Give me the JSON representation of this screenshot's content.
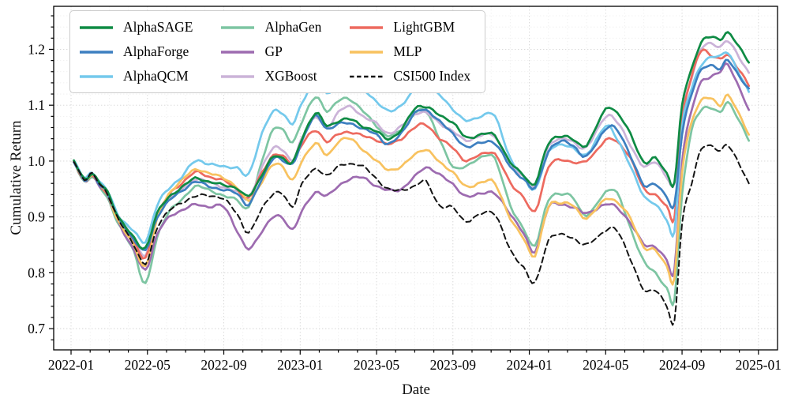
{
  "figure": {
    "xlabel": "Date",
    "ylabel": "Cumulative Return"
  },
  "chart_data": {
    "type": "line",
    "title": "",
    "xlabel": "Date",
    "ylabel": "Cumulative Return",
    "grid": true,
    "legend_position": "upper-left",
    "x_unit": "months since 2022-01",
    "xlim": [
      -0.91,
      37.0
    ],
    "ylim": [
      0.662,
      1.277
    ],
    "x_tick_positions": [
      0,
      4,
      8,
      12,
      16,
      20,
      24,
      28,
      32,
      36
    ],
    "x_tick_labels": [
      "2022-01",
      "2022-05",
      "2022-09",
      "2023-01",
      "2023-05",
      "2023-09",
      "2024-01",
      "2024-05",
      "2024-09",
      "2025-01"
    ],
    "y_ticks": [
      0.7,
      0.8,
      0.9,
      1.0,
      1.1,
      1.2
    ],
    "y_tick_labels": [
      "0.7",
      "0.8",
      "0.9",
      "1.0",
      "1.1",
      "1.2"
    ],
    "x": [
      0.15,
      0.7,
      1.1,
      1.5,
      1.9,
      2.4,
      2.8,
      3.3,
      3.9,
      4.5,
      5.1,
      5.8,
      6.5,
      7.2,
      8.0,
      8.7,
      9.3,
      10.0,
      10.6,
      11.1,
      11.6,
      12.1,
      12.8,
      13.4,
      14.0,
      14.6,
      15.3,
      16.0,
      16.6,
      17.3,
      18.0,
      18.6,
      19.3,
      20.0,
      20.7,
      21.5,
      22.2,
      23.0,
      23.7,
      24.3,
      25.0,
      25.7,
      26.3,
      27.0,
      28.0,
      28.6,
      29.3,
      30.0,
      30.6,
      31.2,
      31.6,
      32.0,
      32.5,
      33.0,
      33.5,
      34.0,
      34.4,
      35.0,
      35.5
    ],
    "series": [
      {
        "name": "AlphaSAGE",
        "color": "#0e8b44",
        "style": "solid",
        "values": [
          1.0,
          0.968,
          0.978,
          0.96,
          0.945,
          0.905,
          0.885,
          0.862,
          0.845,
          0.905,
          0.935,
          0.952,
          0.97,
          0.962,
          0.958,
          0.95,
          0.938,
          0.975,
          1.008,
          1.005,
          0.997,
          1.04,
          1.086,
          1.063,
          1.072,
          1.075,
          1.062,
          1.053,
          1.04,
          1.056,
          1.094,
          1.097,
          1.082,
          1.069,
          1.042,
          1.048,
          1.045,
          0.998,
          0.975,
          0.96,
          1.031,
          1.045,
          1.038,
          1.029,
          1.093,
          1.086,
          1.048,
          0.998,
          1.005,
          0.978,
          0.963,
          1.1,
          1.165,
          1.212,
          1.222,
          1.218,
          1.23,
          1.203,
          1.178
        ]
      },
      {
        "name": "AlphaForge",
        "color": "#3d7fc0",
        "style": "solid",
        "values": [
          1.0,
          0.966,
          0.976,
          0.958,
          0.943,
          0.902,
          0.882,
          0.86,
          0.84,
          0.898,
          0.928,
          0.946,
          0.963,
          0.955,
          0.948,
          0.942,
          0.922,
          0.968,
          1.006,
          1.0,
          0.995,
          1.036,
          1.081,
          1.058,
          1.066,
          1.068,
          1.057,
          1.048,
          1.03,
          1.05,
          1.086,
          1.09,
          1.072,
          1.048,
          1.026,
          1.033,
          1.032,
          0.99,
          0.968,
          0.952,
          1.017,
          1.035,
          1.028,
          1.008,
          1.058,
          1.055,
          1.01,
          0.956,
          0.96,
          0.935,
          0.921,
          1.05,
          1.12,
          1.162,
          1.172,
          1.165,
          1.18,
          1.152,
          1.128
        ]
      },
      {
        "name": "AlphaQCM",
        "color": "#74c9ec",
        "style": "solid",
        "values": [
          1.0,
          0.97,
          0.98,
          0.962,
          0.947,
          0.908,
          0.89,
          0.874,
          0.856,
          0.92,
          0.95,
          0.972,
          1.0,
          0.995,
          0.99,
          0.988,
          0.976,
          1.05,
          1.088,
          1.085,
          1.067,
          1.103,
          1.144,
          1.12,
          1.142,
          1.146,
          1.13,
          1.106,
          1.09,
          1.1,
          1.126,
          1.13,
          1.118,
          1.093,
          1.072,
          1.081,
          1.08,
          1.005,
          0.972,
          0.95,
          1.015,
          1.03,
          1.022,
          1.012,
          1.062,
          1.04,
          0.99,
          0.938,
          0.922,
          0.895,
          0.874,
          1.06,
          1.13,
          1.172,
          1.185,
          1.188,
          1.195,
          1.155,
          1.124
        ]
      },
      {
        "name": "AlphaGen",
        "color": "#7dc5a2",
        "style": "solid",
        "values": [
          1.0,
          0.963,
          0.972,
          0.953,
          0.935,
          0.893,
          0.868,
          0.838,
          0.78,
          0.862,
          0.908,
          0.93,
          0.955,
          0.948,
          0.938,
          0.93,
          0.918,
          1.0,
          1.058,
          1.055,
          1.033,
          1.072,
          1.114,
          1.09,
          1.108,
          1.11,
          1.09,
          1.062,
          1.046,
          1.056,
          1.086,
          1.088,
          1.04,
          0.989,
          0.992,
          1.006,
          1.005,
          0.92,
          0.88,
          0.848,
          0.931,
          0.94,
          0.935,
          0.902,
          0.945,
          0.942,
          0.88,
          0.82,
          0.8,
          0.772,
          0.752,
          0.94,
          1.055,
          1.09,
          1.096,
          1.088,
          1.104,
          1.072,
          1.038
        ]
      },
      {
        "name": "GP",
        "color": "#9d6bb0",
        "style": "solid",
        "values": [
          1.0,
          0.964,
          0.974,
          0.956,
          0.938,
          0.896,
          0.87,
          0.84,
          0.805,
          0.868,
          0.898,
          0.912,
          0.922,
          0.918,
          0.918,
          0.875,
          0.842,
          0.875,
          0.9,
          0.897,
          0.878,
          0.91,
          0.944,
          0.938,
          0.955,
          0.968,
          0.97,
          0.955,
          0.948,
          0.95,
          0.972,
          0.989,
          0.975,
          0.959,
          0.936,
          0.943,
          0.941,
          0.906,
          0.87,
          0.838,
          0.917,
          0.922,
          0.917,
          0.907,
          0.922,
          0.917,
          0.888,
          0.852,
          0.846,
          0.822,
          0.806,
          1.0,
          1.09,
          1.142,
          1.15,
          1.16,
          1.173,
          1.13,
          1.09
        ]
      },
      {
        "name": "XGBoost",
        "color": "#cbb3d8",
        "style": "solid",
        "values": [
          1.0,
          0.967,
          0.977,
          0.959,
          0.944,
          0.904,
          0.884,
          0.858,
          0.832,
          0.9,
          0.932,
          0.95,
          0.968,
          0.962,
          0.953,
          0.945,
          0.934,
          0.988,
          1.024,
          1.02,
          1.0,
          1.042,
          1.078,
          1.06,
          1.088,
          1.097,
          1.08,
          1.067,
          1.05,
          1.062,
          1.084,
          1.086,
          1.068,
          1.053,
          1.037,
          1.046,
          1.044,
          0.995,
          0.972,
          0.955,
          1.026,
          1.04,
          1.034,
          1.025,
          1.08,
          1.07,
          1.028,
          0.99,
          0.998,
          0.972,
          0.958,
          1.085,
          1.15,
          1.2,
          1.21,
          1.205,
          1.215,
          1.185,
          1.158
        ]
      },
      {
        "name": "LightGBM",
        "color": "#ed6a5f",
        "style": "solid",
        "values": [
          1.0,
          0.965,
          0.975,
          0.957,
          0.941,
          0.9,
          0.88,
          0.855,
          0.826,
          0.9,
          0.938,
          0.96,
          0.98,
          0.972,
          0.965,
          0.95,
          0.933,
          0.98,
          1.01,
          1.008,
          0.998,
          1.03,
          1.055,
          1.035,
          1.048,
          1.052,
          1.045,
          1.038,
          1.03,
          1.04,
          1.06,
          1.065,
          1.04,
          1.024,
          1.0,
          1.013,
          1.012,
          0.962,
          0.935,
          0.91,
          0.989,
          1.002,
          0.998,
          1.0,
          1.037,
          1.034,
          1.005,
          0.95,
          0.94,
          0.918,
          0.9,
          1.075,
          1.15,
          1.198,
          1.19,
          1.182,
          1.19,
          1.163,
          1.135
        ]
      },
      {
        "name": "MLP",
        "color": "#f8c25f",
        "style": "solid",
        "values": [
          1.0,
          0.966,
          0.976,
          0.958,
          0.94,
          0.898,
          0.875,
          0.848,
          0.812,
          0.895,
          0.94,
          0.965,
          0.985,
          0.978,
          0.97,
          0.952,
          0.93,
          0.963,
          0.994,
          0.99,
          0.965,
          1.0,
          1.032,
          1.01,
          1.035,
          1.04,
          1.02,
          1.0,
          0.985,
          0.99,
          1.012,
          1.02,
          0.998,
          0.98,
          0.954,
          0.962,
          0.96,
          0.897,
          0.862,
          0.831,
          0.918,
          0.925,
          0.92,
          0.898,
          0.932,
          0.926,
          0.897,
          0.846,
          0.84,
          0.812,
          0.79,
          0.98,
          1.07,
          1.108,
          1.112,
          1.1,
          1.118,
          1.082,
          1.048
        ]
      },
      {
        "name": "CSI500 Index",
        "color": "#141414",
        "style": "dashed",
        "values": [
          1.0,
          0.967,
          0.977,
          0.959,
          0.942,
          0.9,
          0.878,
          0.85,
          0.815,
          0.88,
          0.91,
          0.925,
          0.937,
          0.938,
          0.932,
          0.905,
          0.872,
          0.915,
          0.942,
          0.94,
          0.918,
          0.96,
          0.985,
          0.975,
          0.99,
          0.995,
          0.99,
          0.968,
          0.95,
          0.948,
          0.955,
          0.963,
          0.92,
          0.917,
          0.892,
          0.906,
          0.905,
          0.841,
          0.81,
          0.782,
          0.858,
          0.868,
          0.862,
          0.85,
          0.876,
          0.875,
          0.825,
          0.768,
          0.77,
          0.74,
          0.712,
          0.89,
          0.96,
          1.02,
          1.028,
          1.018,
          1.028,
          0.995,
          0.958
        ]
      }
    ]
  }
}
